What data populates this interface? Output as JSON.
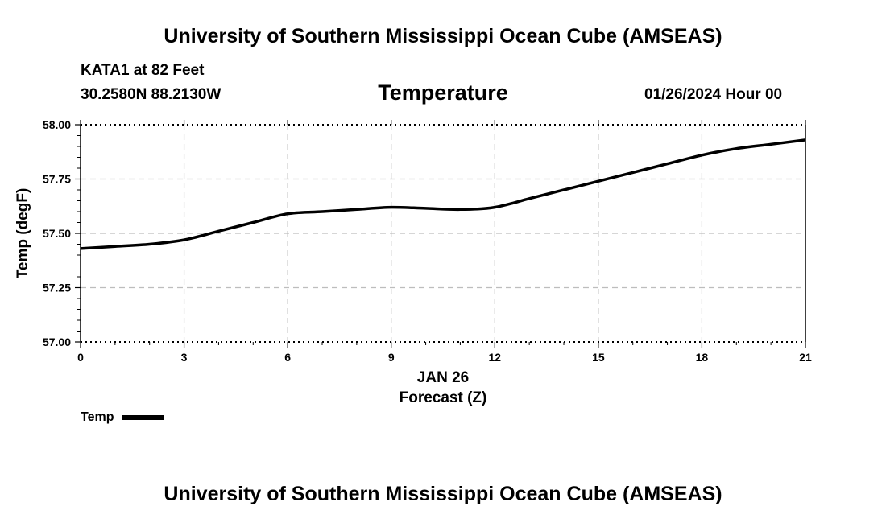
{
  "header": {
    "title": "University of Southern Mississippi Ocean Cube (AMSEAS)",
    "station": "KATA1 at 82 Feet",
    "coords": "30.2580N  88.2130W",
    "date": "01/26/2024 Hour 00"
  },
  "footer": {
    "title": "University of Southern Mississippi Ocean Cube (AMSEAS)"
  },
  "legend": {
    "label": "Temp"
  },
  "chart_data": {
    "type": "line",
    "title": "Temperature",
    "xlabel": "Forecast (Z)",
    "xsublabel": "JAN 26",
    "ylabel": "Temp (degF)",
    "xlim": [
      0,
      21
    ],
    "ylim": [
      57.0,
      58.0
    ],
    "xticks": [
      0,
      3,
      6,
      9,
      12,
      15,
      18,
      21
    ],
    "yticks": [
      "57.00",
      "57.25",
      "57.50",
      "57.75",
      "58.00"
    ],
    "grid": true,
    "series": [
      {
        "name": "Temp",
        "color": "#000000",
        "x": [
          0,
          1,
          2,
          3,
          4,
          5,
          6,
          7,
          8,
          9,
          10,
          11,
          12,
          13,
          14,
          15,
          16,
          17,
          18,
          19,
          20,
          21
        ],
        "values": [
          57.43,
          57.44,
          57.45,
          57.47,
          57.51,
          57.55,
          57.59,
          57.6,
          57.61,
          57.62,
          57.615,
          57.61,
          57.62,
          57.66,
          57.7,
          57.74,
          57.78,
          57.82,
          57.86,
          57.89,
          57.91,
          57.93
        ]
      }
    ]
  }
}
